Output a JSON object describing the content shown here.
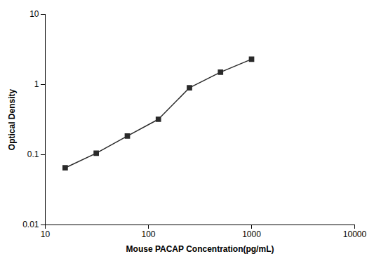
{
  "chart_data": {
    "type": "line",
    "x": [
      15.6,
      31.2,
      62.5,
      125,
      250,
      500,
      1000
    ],
    "values": [
      0.065,
      0.105,
      0.185,
      0.32,
      0.9,
      1.5,
      2.3
    ],
    "color": "#2a2a2a",
    "marker": "square",
    "xlabel": "Mouse PACAP Concentration(pg/mL)",
    "ylabel": "Optical Density",
    "log": true,
    "xlim": [
      10,
      10000
    ],
    "ylim": [
      0.01,
      10
    ],
    "xticks": [
      10,
      100,
      1000,
      10000
    ],
    "yticks": [
      0.01,
      0.1,
      1,
      10
    ],
    "grid": false
  }
}
